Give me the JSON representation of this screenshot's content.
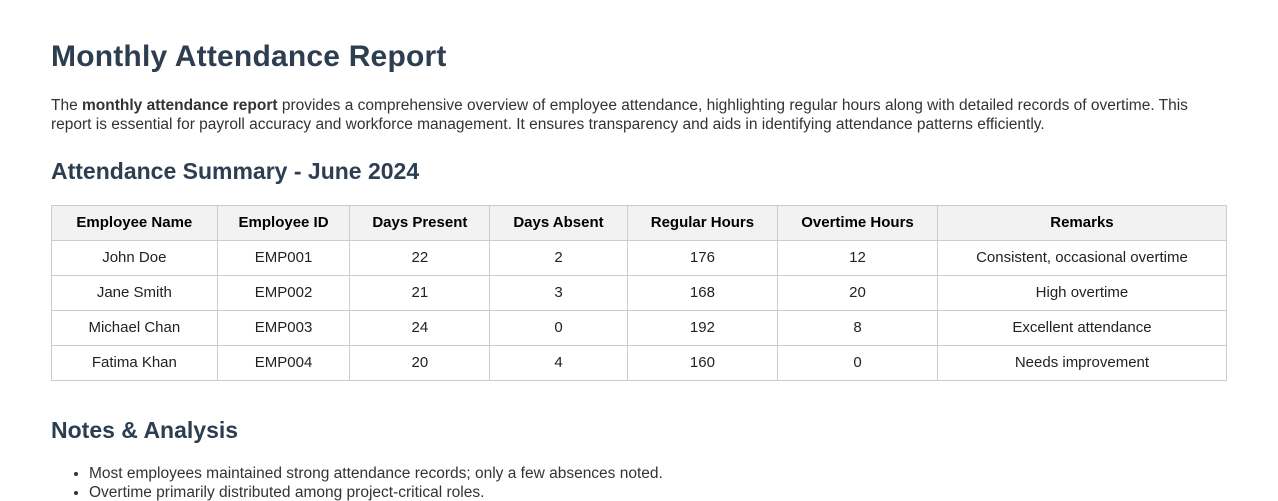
{
  "page": {
    "title": "Monthly Attendance Report"
  },
  "intro": {
    "lead": "The ",
    "bold": "monthly attendance report",
    "rest": " provides a comprehensive overview of employee attendance, highlighting regular hours along with detailed records of overtime. This report is essential for payroll accuracy and workforce management. It ensures transparency and aids in identifying attendance patterns efficiently."
  },
  "summary": {
    "heading": "Attendance Summary - June 2024",
    "table": {
      "headers": [
        "Employee Name",
        "Employee ID",
        "Days Present",
        "Days Absent",
        "Regular Hours",
        "Overtime Hours",
        "Remarks"
      ],
      "rows": [
        [
          "John Doe",
          "EMP001",
          "22",
          "2",
          "176",
          "12",
          "Consistent, occasional overtime"
        ],
        [
          "Jane Smith",
          "EMP002",
          "21",
          "3",
          "168",
          "20",
          "High overtime"
        ],
        [
          "Michael Chan",
          "EMP003",
          "24",
          "0",
          "192",
          "8",
          "Excellent attendance"
        ],
        [
          "Fatima Khan",
          "EMP004",
          "20",
          "4",
          "160",
          "0",
          "Needs improvement"
        ]
      ]
    }
  },
  "notes": {
    "heading": "Notes & Analysis",
    "items": [
      "Most employees maintained strong attendance records; only a few absences noted.",
      "Overtime primarily distributed among project-critical roles."
    ]
  },
  "colors": {
    "heading": "#2c3e50",
    "body_text": "#333333",
    "table_border": "#cccccc",
    "table_header_bg": "#f2f2f2",
    "background": "#ffffff"
  }
}
